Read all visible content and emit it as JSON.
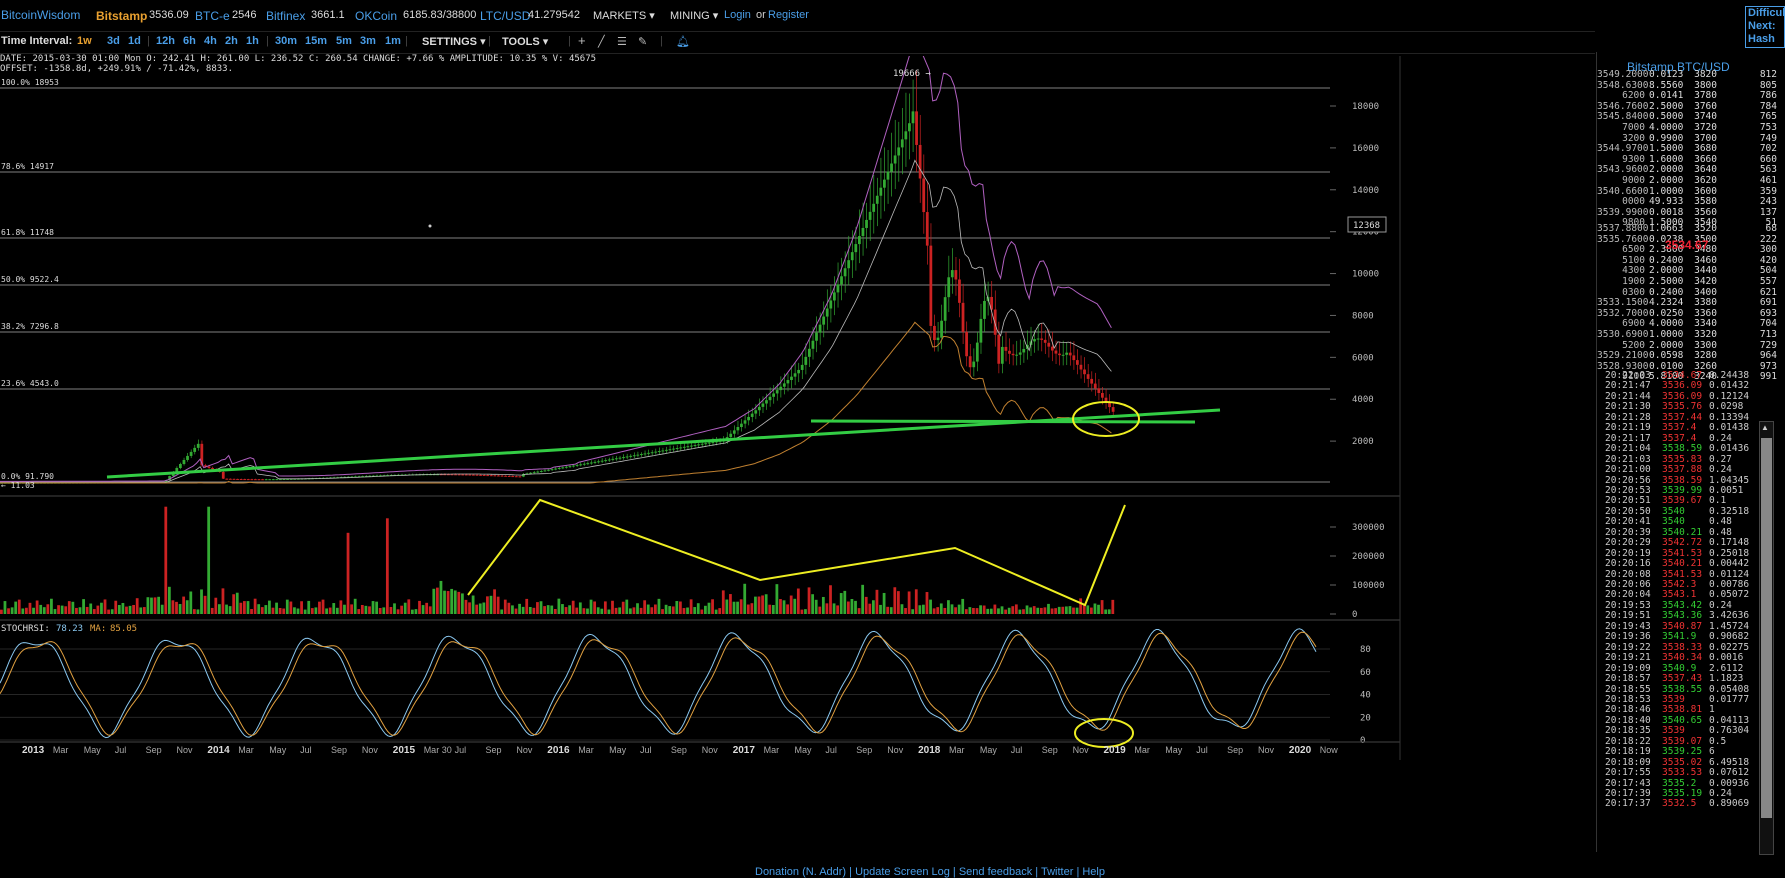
{
  "header": {
    "logo": "BitcoinWisdom",
    "markets": [
      {
        "name": "Bitstamp",
        "price": "3536.09",
        "active": true
      },
      {
        "name": "BTC-e",
        "price": "2546"
      },
      {
        "name": "Bitfinex",
        "price": "3661.1"
      },
      {
        "name": "OKCoin",
        "price": "6185.83/38800"
      },
      {
        "name": "LTC/USD",
        "price": "41.279542"
      }
    ],
    "menus": [
      "MARKETS",
      "MINING"
    ],
    "login": "Login",
    "or": "or",
    "register": "Register",
    "corner_text": [
      "Difficul",
      "Next:",
      "Hash R"
    ]
  },
  "toolbar": {
    "label": "Time Interval:",
    "intervals": [
      "1w",
      "3d",
      "1d",
      "12h",
      "6h",
      "4h",
      "2h",
      "1h",
      "30m",
      "15m",
      "5m",
      "3m",
      "1m"
    ],
    "active_interval": "1w",
    "settings": "SETTINGS",
    "tools": "TOOLS"
  },
  "ohlc": {
    "line1": "DATE: 2015-03-30 01:00 Mon   O: 242.41   H: 261.00   L: 236.52   C: 260.54   CHANGE: +7.66 %   AMPLITUDE: 10.35 %   V: 45675",
    "line2": "OFFSET: -1358.8d, +249.91% / -71.42%, 8833."
  },
  "price_chart": {
    "y_ticks": [
      "18000",
      "16000",
      "14000",
      "12000",
      "10000",
      "8000",
      "6000",
      "4000",
      "2000"
    ],
    "fib_levels": [
      {
        "label": "100.0% 18953"
      },
      {
        "label": "78.6% 14917"
      },
      {
        "label": "61.8% 11748"
      },
      {
        "label": "50.0% 9522.4"
      },
      {
        "label": "38.2% 7296.8"
      },
      {
        "label": "23.6% 4543.0"
      },
      {
        "label": "0.0% 91.790"
      }
    ],
    "peak_label": "19666 →",
    "min_label": "← 11.03",
    "crosshair_label": "12368"
  },
  "volume_chart": {
    "y_ticks": [
      "300000",
      "200000",
      "100000",
      "0"
    ]
  },
  "stoch": {
    "label": "STOCHRSI:",
    "value": "78.23",
    "ma_label": "MA:",
    "ma_value": "85.05",
    "y_ticks": [
      "80",
      "60",
      "40",
      "20",
      "0"
    ]
  },
  "x_axis": {
    "labels": [
      "2013",
      "Mar",
      "May",
      "Jul",
      "Sep",
      "Nov",
      "2014",
      "Mar",
      "May",
      "Jul",
      "Sep",
      "Nov",
      "2015",
      "Mar 30",
      "Jul",
      "Sep",
      "Nov",
      "2016",
      "Mar",
      "May",
      "Jul",
      "Sep",
      "Nov",
      "2017",
      "Mar",
      "May",
      "Jul",
      "Sep",
      "Nov",
      "2018",
      "Mar",
      "May",
      "Jul",
      "Sep",
      "Nov",
      "2019",
      "Mar",
      "May",
      "Jul",
      "Sep",
      "Nov",
      "2020",
      "Now"
    ]
  },
  "colors": {
    "up": "#33aa33",
    "down": "#cc2222",
    "accent": "#4a9ee8",
    "annotation": "#eeee22",
    "trendline": "#33cc44",
    "bb_upper": "#b060c0",
    "bb_lower": "#c08030"
  },
  "sidebar": {
    "title": "Bitstamp BTC/USD",
    "last_price": "3534.67",
    "asks": [
      [
        "3549.2000",
        "0.0123",
        "3820",
        "812"
      ],
      [
        "3548.6300",
        "8.5560",
        "3800",
        "805"
      ],
      [
        "6200",
        "0.0141",
        "3780",
        "786"
      ],
      [
        "3546.7600",
        "2.5000",
        "3760",
        "784"
      ],
      [
        "3545.8400",
        "0.5000",
        "3740",
        "765"
      ],
      [
        "7000",
        "4.0000",
        "3720",
        "753"
      ],
      [
        "3200",
        "0.9900",
        "3700",
        "749"
      ],
      [
        "3544.9700",
        "1.5000",
        "3680",
        "702"
      ],
      [
        "9300",
        "1.6000",
        "3660",
        "660"
      ],
      [
        "3543.9600",
        "2.0000",
        "3640",
        "563"
      ],
      [
        "9000",
        "2.0000",
        "3620",
        "461"
      ],
      [
        "3540.6600",
        "1.0000",
        "3600",
        "359"
      ],
      [
        "0000",
        "49.933",
        "3580",
        "243"
      ],
      [
        "3539.9900",
        "0.0018",
        "3560",
        "137"
      ],
      [
        "9800",
        "1.5000",
        "3540",
        "51"
      ]
    ],
    "bids": [
      [
        "3537.8800",
        "1.0663",
        "3520",
        "68"
      ],
      [
        "3535.7600",
        "0.0238",
        "3500",
        "222"
      ],
      [
        "6500",
        "2.3800",
        "3480",
        "300"
      ],
      [
        "5100",
        "0.2400",
        "3460",
        "420"
      ],
      [
        "4300",
        "2.0000",
        "3440",
        "504"
      ],
      [
        "1900",
        "2.5000",
        "3420",
        "557"
      ],
      [
        "0300",
        "0.2400",
        "3400",
        "621"
      ],
      [
        "3533.1500",
        "4.2324",
        "3380",
        "691"
      ],
      [
        "3532.7000",
        "0.0250",
        "3360",
        "693"
      ],
      [
        "6900",
        "4.0000",
        "3340",
        "704"
      ],
      [
        "3530.6900",
        "1.0000",
        "3320",
        "713"
      ],
      [
        "5200",
        "2.0000",
        "3300",
        "729"
      ],
      [
        "3529.2100",
        "0.0598",
        "3280",
        "964"
      ],
      [
        "3528.9300",
        "0.0100",
        "3260",
        "973"
      ],
      [
        "9100",
        "5.8100",
        "3240",
        "991"
      ]
    ],
    "trades": [
      [
        "20:22:03",
        "3534.67",
        "r",
        "0.24438"
      ],
      [
        "20:21:47",
        "3536.09",
        "r",
        "0.01432"
      ],
      [
        "20:21:44",
        "3536.09",
        "r",
        "0.12124"
      ],
      [
        "20:21:30",
        "3535.76",
        "r",
        "0.0298"
      ],
      [
        "20:21:28",
        "3537.44",
        "r",
        "0.13394"
      ],
      [
        "20:21:19",
        "3537.4",
        "r",
        "0.01438"
      ],
      [
        "20:21:17",
        "3537.4",
        "r",
        "0.24"
      ],
      [
        "20:21:04",
        "3538.59",
        "g",
        "0.01436"
      ],
      [
        "20:21:03",
        "3535.83",
        "r",
        "0.27"
      ],
      [
        "20:21:00",
        "3537.88",
        "r",
        "0.24"
      ],
      [
        "20:20:56",
        "3538.59",
        "r",
        "1.04345"
      ],
      [
        "20:20:53",
        "3539.99",
        "g",
        "0.0051"
      ],
      [
        "20:20:51",
        "3539.67",
        "r",
        "0.1"
      ],
      [
        "20:20:50",
        "3540",
        "g",
        "0.32518"
      ],
      [
        "20:20:41",
        "3540",
        "g",
        "0.48"
      ],
      [
        "20:20:39",
        "3540.21",
        "g",
        "0.48"
      ],
      [
        "20:20:29",
        "3542.72",
        "r",
        "0.17148"
      ],
      [
        "20:20:19",
        "3541.53",
        "r",
        "0.25018"
      ],
      [
        "20:20:16",
        "3540.21",
        "r",
        "0.00442"
      ],
      [
        "20:20:08",
        "3541.53",
        "r",
        "0.01124"
      ],
      [
        "20:20:06",
        "3542.3",
        "r",
        "0.00786"
      ],
      [
        "20:20:04",
        "3543.1",
        "r",
        "0.05072"
      ],
      [
        "20:19:53",
        "3543.42",
        "g",
        "0.24"
      ],
      [
        "20:19:51",
        "3543.36",
        "g",
        "3.42636"
      ],
      [
        "20:19:43",
        "3540.87",
        "r",
        "1.45724"
      ],
      [
        "20:19:36",
        "3541.9",
        "g",
        "0.90682"
      ],
      [
        "20:19:22",
        "3538.33",
        "r",
        "0.02275"
      ],
      [
        "20:19:21",
        "3540.34",
        "r",
        "0.0016"
      ],
      [
        "20:19:09",
        "3540.9",
        "g",
        "2.6112"
      ],
      [
        "20:18:57",
        "3537.43",
        "r",
        "1.1823"
      ],
      [
        "20:18:55",
        "3538.55",
        "g",
        "0.05408"
      ],
      [
        "20:18:53",
        "3539",
        "r",
        "0.01777"
      ],
      [
        "20:18:46",
        "3538.81",
        "r",
        "1"
      ],
      [
        "20:18:40",
        "3540.65",
        "g",
        "0.04113"
      ],
      [
        "20:18:35",
        "3539",
        "r",
        "0.76304"
      ],
      [
        "20:18:22",
        "3539.07",
        "r",
        "0.5"
      ],
      [
        "20:18:19",
        "3539.25",
        "g",
        "6"
      ],
      [
        "20:18:09",
        "3535.02",
        "r",
        "6.49518"
      ],
      [
        "20:17:55",
        "3533.53",
        "r",
        "0.07612"
      ],
      [
        "20:17:43",
        "3535.2",
        "g",
        "0.00936"
      ],
      [
        "20:17:39",
        "3535.19",
        "g",
        "0.24"
      ],
      [
        "20:17:37",
        "3532.5",
        "r",
        "0.89069"
      ]
    ]
  },
  "footer": {
    "text": "Donation (N. Addr)  |  Update Screen Log  |  Send feedback  |  Twitter  |  Help"
  }
}
